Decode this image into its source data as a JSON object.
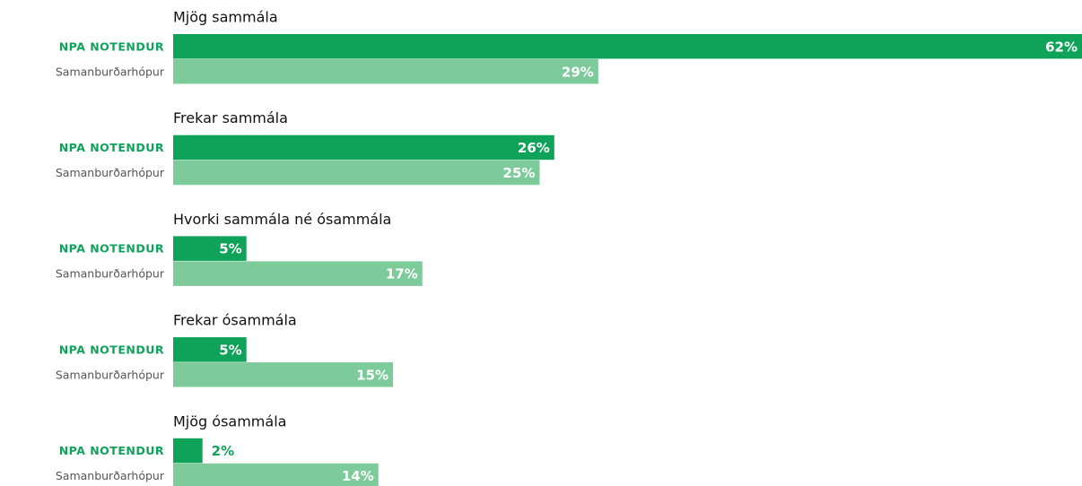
{
  "chart_data": {
    "type": "bar",
    "orientation": "horizontal",
    "categories": [
      "Mjög sammála",
      "Frekar sammála",
      "Hvorki sammála né ósammála",
      "Frekar ósammála",
      "Mjög ósammála"
    ],
    "series": [
      {
        "name": "NPA NOTENDUR",
        "color": "#0fa35a",
        "values": [
          62,
          26,
          5,
          5,
          2
        ],
        "value_labels": [
          "62%",
          "26%",
          "5%",
          "5%",
          "2%"
        ]
      },
      {
        "name": "Samanburðarhópur",
        "color": "#7dcb9a",
        "values": [
          29,
          25,
          17,
          15,
          14
        ],
        "value_labels": [
          "29%",
          "25%",
          "17%",
          "15%",
          "14%"
        ]
      }
    ]
  }
}
